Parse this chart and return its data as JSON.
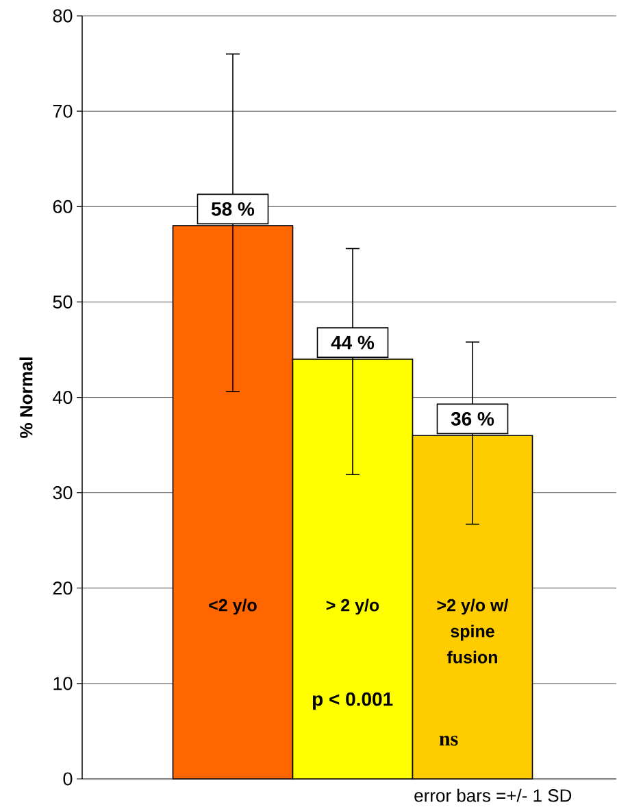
{
  "chart_data": {
    "type": "bar",
    "ylabel": "% Normal",
    "categories": [
      "<2 y/o",
      "> 2 y/o",
      ">2 y/o w/ spine fusion"
    ],
    "values": [
      58,
      44,
      36
    ],
    "colors": [
      "#ff6600",
      "#ffff00",
      "#ffcc00"
    ],
    "errors": [
      [
        40.6,
        76
      ],
      [
        31.9,
        55.6
      ],
      [
        26.7,
        45.8
      ]
    ],
    "value_labels": [
      "58 %",
      "44 %",
      "36 %"
    ],
    "ylim": [
      0,
      80
    ],
    "yticks": [
      0,
      10,
      20,
      30,
      40,
      50,
      60,
      70,
      80
    ],
    "grid": "y",
    "annotations": [
      "p < 0.001",
      "ns",
      "error bars =+/- 1 SD"
    ]
  }
}
